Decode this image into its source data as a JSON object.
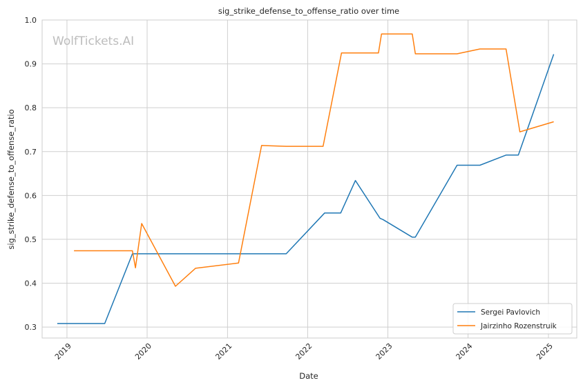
{
  "chart_data": {
    "type": "line",
    "title": "sig_strike_defense_to_offense_ratio over time",
    "xlabel": "Date",
    "ylabel": "sig_strike_defense_to_offense_ratio",
    "watermark": "WolfTickets.AI",
    "xlim": [
      "2018-09-10",
      "2025-05-10"
    ],
    "ylim": [
      0.275,
      1.0
    ],
    "x_ticks": [
      "2019",
      "2020",
      "2021",
      "2022",
      "2023",
      "2024",
      "2025"
    ],
    "y_ticks": [
      "0.3",
      "0.4",
      "0.5",
      "0.6",
      "0.7",
      "0.8",
      "0.9",
      "1.0"
    ],
    "grid": true,
    "legend_position": "lower right",
    "series": [
      {
        "name": "Sergei Pavlovich",
        "color": "#1f77b4",
        "points": [
          [
            "2018-11-18",
            0.308
          ],
          [
            "2019-06-22",
            0.308
          ],
          [
            "2019-10-26",
            0.467
          ],
          [
            "2021-09-25",
            0.467
          ],
          [
            "2022-03-19",
            0.56
          ],
          [
            "2022-05-31",
            0.56
          ],
          [
            "2022-08-06",
            0.634
          ],
          [
            "2022-11-26",
            0.548
          ],
          [
            "2022-12-10",
            0.545
          ],
          [
            "2023-04-22",
            0.505
          ],
          [
            "2023-05-06",
            0.505
          ],
          [
            "2023-11-12",
            0.669
          ],
          [
            "2024-02-24",
            0.669
          ],
          [
            "2024-06-22",
            0.692
          ],
          [
            "2024-08-17",
            0.692
          ],
          [
            "2025-01-25",
            0.922
          ]
        ]
      },
      {
        "name": "Jairzinho Rozenstruik",
        "color": "#ff7f0e",
        "points": [
          [
            "2019-02-02",
            0.474
          ],
          [
            "2019-10-26",
            0.474
          ],
          [
            "2019-11-09",
            0.435
          ],
          [
            "2019-12-07",
            0.536
          ],
          [
            "2020-05-09",
            0.393
          ],
          [
            "2020-08-08",
            0.434
          ],
          [
            "2021-02-20",
            0.446
          ],
          [
            "2021-06-05",
            0.714
          ],
          [
            "2021-09-25",
            0.712
          ],
          [
            "2022-03-12",
            0.712
          ],
          [
            "2022-06-04",
            0.925
          ],
          [
            "2022-11-19",
            0.925
          ],
          [
            "2022-12-03",
            0.968
          ],
          [
            "2023-04-22",
            0.968
          ],
          [
            "2023-05-06",
            0.923
          ],
          [
            "2023-11-12",
            0.923
          ],
          [
            "2024-02-24",
            0.934
          ],
          [
            "2024-06-22",
            0.934
          ],
          [
            "2024-08-24",
            0.745
          ],
          [
            "2025-01-25",
            0.768
          ]
        ]
      }
    ]
  }
}
